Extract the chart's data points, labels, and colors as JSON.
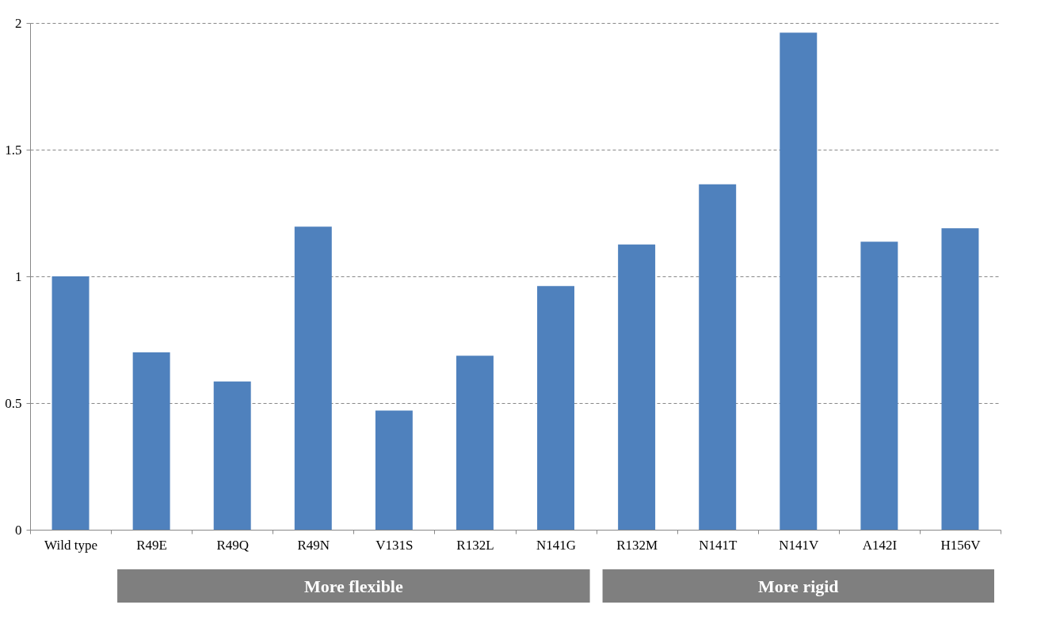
{
  "chart_data": {
    "type": "bar",
    "categories": [
      "Wild type",
      "R49E",
      "R49Q",
      "R49N",
      "V131S",
      "R132L",
      "N141G",
      "R132M",
      "N141T",
      "N141V",
      "A142I",
      "H156V"
    ],
    "values": [
      1.0,
      0.7,
      0.585,
      1.196,
      0.47,
      0.687,
      0.962,
      1.126,
      1.363,
      1.962,
      1.137,
      1.19
    ],
    "color": "#4f81bd",
    "ylim": [
      0,
      2
    ],
    "yticks": [
      0,
      0.5,
      1,
      1.5,
      2
    ],
    "grid": "y",
    "annotations": [
      "More flexible",
      "More rigid"
    ]
  }
}
